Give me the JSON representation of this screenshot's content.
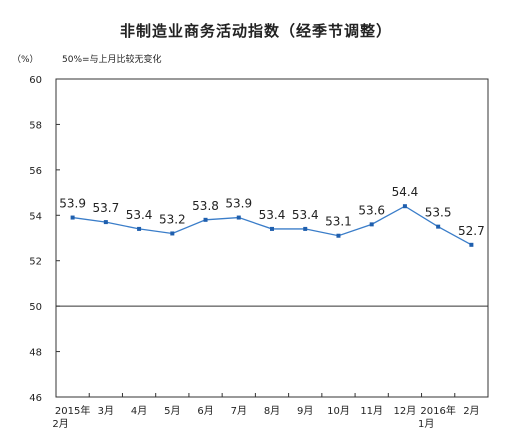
{
  "chart_data": {
    "type": "line",
    "title": "非制造业商务活动指数（经季节调整）",
    "unit": "（%）",
    "note": "50%=与上月比较无变化",
    "categories": [
      [
        "2015年",
        "2月"
      ],
      [
        "3月"
      ],
      [
        "4月"
      ],
      [
        "5月"
      ],
      [
        "6月"
      ],
      [
        "7月"
      ],
      [
        "8月"
      ],
      [
        "9月"
      ],
      [
        "10月"
      ],
      [
        "11月"
      ],
      [
        "12月"
      ],
      [
        "2016年",
        "1月"
      ],
      [
        "2月"
      ]
    ],
    "values": [
      53.9,
      53.7,
      53.4,
      53.2,
      53.8,
      53.9,
      53.4,
      53.4,
      53.1,
      53.6,
      54.4,
      53.5,
      52.7
    ],
    "value_labels": [
      "53.9",
      "53.7",
      "53.4",
      "53.2",
      "53.8",
      "53.9",
      "53.4",
      "53.4",
      "53.1",
      "53.6",
      "54.4",
      "53.5",
      "52.7"
    ],
    "ylim": [
      46,
      60
    ],
    "yticks": [
      "46",
      "48",
      "50",
      "52",
      "54",
      "56",
      "58",
      "60"
    ],
    "reference_line": 50,
    "grid": false,
    "colors": {
      "line": "#3a7dc9",
      "marker": "#1f5fae",
      "axis": "#333333"
    }
  }
}
